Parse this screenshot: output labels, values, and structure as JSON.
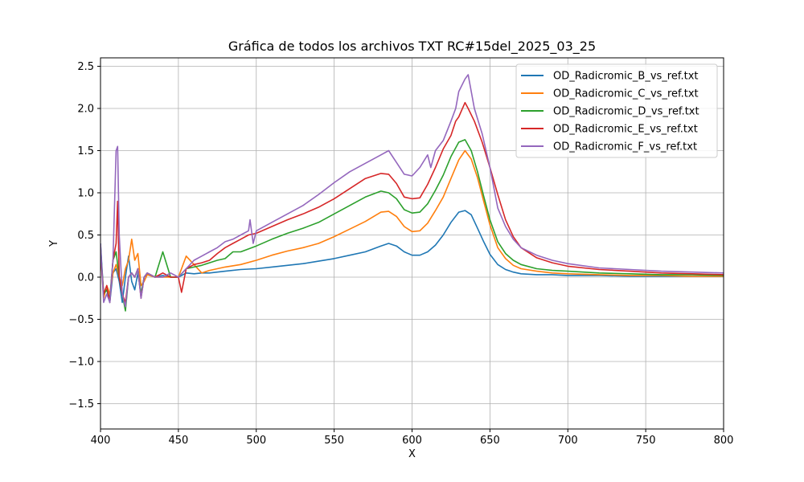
{
  "chart_data": {
    "type": "line",
    "title": "Gráfica de todos los archivos TXT RC#15del_2025_03_25",
    "xlabel": "X",
    "ylabel": "Y",
    "xlim": [
      400,
      800
    ],
    "ylim": [
      -1.8,
      2.6
    ],
    "xticks": [
      400,
      450,
      500,
      550,
      600,
      650,
      700,
      750,
      800
    ],
    "xtick_labels": [
      "400",
      "450",
      "500",
      "550",
      "600",
      "650",
      "700",
      "750",
      "800"
    ],
    "yticks": [
      -1.5,
      -1.0,
      -0.5,
      0.0,
      0.5,
      1.0,
      1.5,
      2.0,
      2.5
    ],
    "ytick_labels": [
      "−1.5",
      "−1.0",
      "−0.5",
      "0.0",
      "0.5",
      "1.0",
      "1.5",
      "2.0",
      "2.5"
    ],
    "grid": true,
    "legend_position": "top-right",
    "series": [
      {
        "name": "OD_Radicromic_B_vs_ref.txt",
        "color": "#1f77b4",
        "x": [
          400,
          402,
          404,
          406,
          408,
          410,
          412,
          414,
          416,
          418,
          420,
          422,
          424,
          426,
          428,
          430,
          435,
          440,
          445,
          450,
          455,
          460,
          465,
          470,
          475,
          480,
          490,
          500,
          510,
          520,
          530,
          540,
          550,
          560,
          570,
          580,
          585,
          590,
          595,
          600,
          605,
          610,
          615,
          620,
          625,
          630,
          634,
          638,
          642,
          646,
          650,
          655,
          660,
          665,
          670,
          680,
          690,
          700,
          720,
          740,
          760,
          780,
          800
        ],
        "y": [
          0.4,
          -0.2,
          -0.15,
          -0.3,
          0.05,
          0.1,
          -0.05,
          -0.3,
          0.0,
          0.25,
          -0.05,
          -0.15,
          0.05,
          -0.2,
          0.0,
          0.03,
          0.0,
          0.02,
          0.0,
          0.0,
          0.05,
          0.04,
          0.05,
          0.05,
          0.06,
          0.07,
          0.09,
          0.1,
          0.12,
          0.14,
          0.16,
          0.19,
          0.22,
          0.26,
          0.3,
          0.37,
          0.4,
          0.37,
          0.3,
          0.26,
          0.26,
          0.3,
          0.38,
          0.5,
          0.65,
          0.77,
          0.79,
          0.74,
          0.58,
          0.42,
          0.27,
          0.15,
          0.09,
          0.06,
          0.04,
          0.03,
          0.03,
          0.02,
          0.02,
          0.01,
          0.01,
          0.01,
          0.01
        ]
      },
      {
        "name": "OD_Radicromic_C_vs_ref.txt",
        "color": "#ff7f0e",
        "x": [
          400,
          402,
          404,
          406,
          408,
          410,
          412,
          414,
          416,
          418,
          420,
          422,
          424,
          426,
          428,
          430,
          435,
          440,
          445,
          450,
          455,
          460,
          465,
          470,
          475,
          480,
          490,
          500,
          510,
          520,
          530,
          540,
          550,
          560,
          570,
          580,
          585,
          590,
          595,
          600,
          605,
          610,
          615,
          620,
          625,
          630,
          634,
          638,
          642,
          646,
          650,
          655,
          660,
          665,
          670,
          680,
          690,
          700,
          720,
          740,
          760,
          780,
          800
        ],
        "y": [
          0.3,
          -0.25,
          -0.1,
          -0.2,
          0.05,
          0.15,
          0.0,
          -0.1,
          0.1,
          0.2,
          0.45,
          0.2,
          0.28,
          -0.1,
          -0.05,
          0.03,
          0.0,
          0.0,
          0.0,
          0.0,
          0.25,
          0.15,
          0.05,
          0.08,
          0.1,
          0.12,
          0.15,
          0.2,
          0.26,
          0.31,
          0.35,
          0.4,
          0.48,
          0.57,
          0.66,
          0.77,
          0.78,
          0.72,
          0.6,
          0.54,
          0.55,
          0.64,
          0.79,
          0.95,
          1.17,
          1.39,
          1.5,
          1.4,
          1.18,
          0.9,
          0.62,
          0.35,
          0.22,
          0.14,
          0.1,
          0.07,
          0.05,
          0.04,
          0.03,
          0.02,
          0.02,
          0.01,
          0.01
        ]
      },
      {
        "name": "OD_Radicromic_D_vs_ref.txt",
        "color": "#2ca02c",
        "x": [
          400,
          402,
          404,
          406,
          408,
          410,
          412,
          414,
          416,
          418,
          420,
          422,
          424,
          426,
          428,
          430,
          435,
          440,
          445,
          450,
          455,
          460,
          465,
          470,
          475,
          480,
          485,
          490,
          500,
          510,
          520,
          530,
          540,
          550,
          560,
          570,
          580,
          585,
          590,
          595,
          600,
          605,
          610,
          615,
          620,
          625,
          630,
          634,
          638,
          642,
          646,
          650,
          655,
          660,
          665,
          670,
          680,
          690,
          700,
          720,
          740,
          760,
          780,
          800
        ],
        "y": [
          0.35,
          -0.2,
          -0.15,
          -0.25,
          0.2,
          0.3,
          0.0,
          -0.2,
          -0.4,
          0.0,
          0.05,
          0.0,
          0.1,
          -0.2,
          0.0,
          0.05,
          0.0,
          0.3,
          0.0,
          0.0,
          0.1,
          0.12,
          0.14,
          0.17,
          0.2,
          0.22,
          0.3,
          0.3,
          0.37,
          0.45,
          0.52,
          0.58,
          0.65,
          0.75,
          0.85,
          0.95,
          1.02,
          1.0,
          0.93,
          0.8,
          0.76,
          0.77,
          0.87,
          1.03,
          1.21,
          1.43,
          1.6,
          1.63,
          1.5,
          1.25,
          0.96,
          0.68,
          0.42,
          0.28,
          0.2,
          0.15,
          0.1,
          0.08,
          0.07,
          0.05,
          0.04,
          0.03,
          0.03,
          0.02
        ]
      },
      {
        "name": "OD_Radicromic_E_vs_ref.txt",
        "color": "#d62728",
        "x": [
          400,
          402,
          404,
          406,
          408,
          410,
          411,
          412,
          414,
          416,
          418,
          420,
          422,
          424,
          426,
          428,
          430,
          435,
          440,
          445,
          450,
          452,
          455,
          460,
          465,
          470,
          475,
          480,
          485,
          490,
          495,
          500,
          510,
          520,
          530,
          540,
          550,
          560,
          570,
          580,
          585,
          590,
          595,
          600,
          605,
          610,
          615,
          620,
          625,
          628,
          630,
          634,
          636,
          640,
          645,
          650,
          655,
          660,
          665,
          670,
          680,
          690,
          700,
          720,
          740,
          760,
          780,
          800
        ],
        "y": [
          0.3,
          -0.2,
          -0.1,
          -0.3,
          0.2,
          0.4,
          0.9,
          0.0,
          -0.2,
          -0.3,
          0.0,
          0.05,
          0.0,
          0.1,
          -0.25,
          0.0,
          0.05,
          0.0,
          0.05,
          0.0,
          0.0,
          -0.18,
          0.1,
          0.15,
          0.17,
          0.2,
          0.28,
          0.35,
          0.4,
          0.45,
          0.5,
          0.52,
          0.6,
          0.68,
          0.75,
          0.83,
          0.93,
          1.05,
          1.17,
          1.23,
          1.22,
          1.11,
          0.95,
          0.93,
          0.94,
          1.1,
          1.3,
          1.52,
          1.68,
          1.85,
          1.9,
          2.07,
          2.0,
          1.85,
          1.6,
          1.3,
          0.98,
          0.68,
          0.48,
          0.35,
          0.23,
          0.17,
          0.13,
          0.09,
          0.07,
          0.05,
          0.04,
          0.03
        ]
      },
      {
        "name": "OD_Radicromic_F_vs_ref.txt",
        "color": "#9467bd",
        "x": [
          400,
          402,
          404,
          406,
          408,
          410,
          411,
          412,
          414,
          416,
          418,
          420,
          422,
          424,
          426,
          428,
          430,
          435,
          440,
          445,
          450,
          455,
          460,
          465,
          470,
          475,
          480,
          485,
          490,
          495,
          496,
          498,
          500,
          510,
          520,
          530,
          540,
          550,
          560,
          570,
          580,
          585,
          590,
          595,
          600,
          605,
          610,
          612,
          615,
          620,
          625,
          628,
          630,
          634,
          636,
          640,
          645,
          650,
          655,
          660,
          665,
          670,
          680,
          690,
          700,
          720,
          740,
          760,
          780,
          800
        ],
        "y": [
          0.4,
          -0.3,
          -0.2,
          -0.3,
          0.2,
          1.5,
          1.55,
          0.5,
          -0.2,
          -0.35,
          0.0,
          0.05,
          0.0,
          0.1,
          -0.25,
          0.0,
          0.05,
          0.0,
          0.0,
          0.05,
          0.0,
          0.1,
          0.2,
          0.25,
          0.3,
          0.35,
          0.42,
          0.45,
          0.5,
          0.55,
          0.68,
          0.4,
          0.55,
          0.65,
          0.75,
          0.85,
          0.98,
          1.12,
          1.25,
          1.35,
          1.45,
          1.5,
          1.36,
          1.22,
          1.2,
          1.3,
          1.45,
          1.3,
          1.5,
          1.62,
          1.85,
          2.0,
          2.2,
          2.35,
          2.4,
          2.0,
          1.7,
          1.3,
          0.82,
          0.6,
          0.45,
          0.35,
          0.26,
          0.2,
          0.16,
          0.11,
          0.09,
          0.07,
          0.06,
          0.05
        ]
      }
    ]
  }
}
